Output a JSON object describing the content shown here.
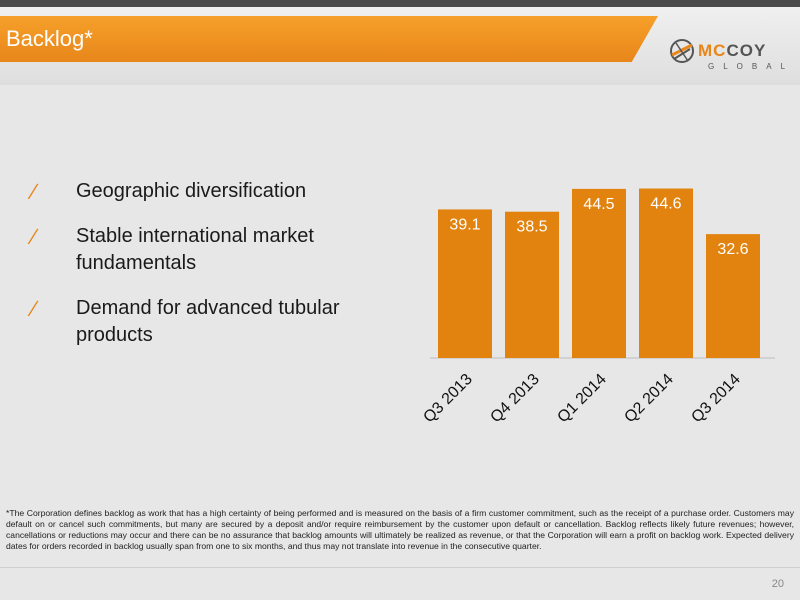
{
  "slide": {
    "title": "Backlog*",
    "logo": {
      "word_part1": "MC",
      "word_part2": "COY",
      "subword": "GLOBAL"
    },
    "bullets": [
      "Geographic diversification",
      "Stable international market fundamentals",
      "Demand for advanced tubular products"
    ],
    "bullet_mark": "∕",
    "footnote": "*The Corporation defines backlog as work that has a high certainty of being performed and is measured on the basis of a firm customer commitment, such as the receipt of a purchase order. Customers may default on or cancel such commitments, but many are secured by a deposit and/or require reimbursement by the customer upon default or cancellation. Backlog reflects likely future revenues; however, cancellations or reductions may occur and there can be no assurance that backlog amounts will ultimately be realized as revenue, or that the Corporation will earn a profit on backlog work. Expected delivery dates for orders recorded in backlog usually span from one to six months, and thus may not translate into revenue in the consecutive quarter.",
    "page_number": "20"
  },
  "colors": {
    "accent": "#e8861a",
    "bar": "#e2830f",
    "header_gray": "#4a4a4a",
    "background": "#e7e7e7"
  },
  "chart_data": {
    "type": "bar",
    "categories": [
      "Q3 2013",
      "Q4 2013",
      "Q1 2014",
      "Q2 2014",
      "Q3 2014"
    ],
    "values": [
      39.1,
      38.5,
      44.5,
      44.6,
      32.6
    ],
    "data_labels": [
      "39.1",
      "38.5",
      "44.5",
      "44.6",
      "32.6"
    ],
    "title": "",
    "xlabel": "",
    "ylabel": "",
    "ylim": [
      0,
      50
    ],
    "grid": false,
    "legend": "none",
    "x_tick_rotation": -45
  }
}
